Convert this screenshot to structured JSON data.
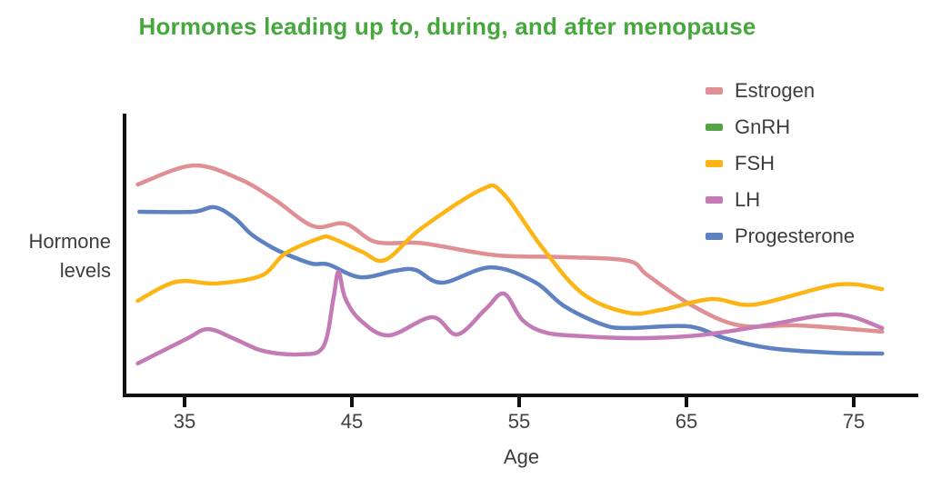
{
  "title": {
    "text": "Hormones leading up to, during, and after menopause",
    "color": "#46a83c"
  },
  "y_axis_label": "Hormone\nlevels",
  "x_axis_label": "Age",
  "legend": [
    {
      "label": "Estrogen",
      "color": "#e08f94"
    },
    {
      "label": "GnRH",
      "color": "#55a546"
    },
    {
      "label": "FSH",
      "color": "#fdb515"
    },
    {
      "label": "LH",
      "color": "#c47ab4"
    },
    {
      "label": "Progesterone",
      "color": "#5d81c1"
    }
  ],
  "colors": {
    "axis": "#111111",
    "text": "#3d3d3d",
    "background": "#ffffff"
  },
  "chart_data": {
    "type": "line",
    "title": "Hormones leading up to, during, and after menopause",
    "xlabel": "Age",
    "ylabel": "Hormone levels",
    "x_ticks": [
      35,
      45,
      55,
      65,
      75
    ],
    "xlim": [
      31.5,
      79
    ],
    "ylim": [
      0,
      100
    ],
    "y_units": "relative hormone level (y axis unlabeled; 0-100 arbitrary units)",
    "grid": false,
    "legend_position": "top-right",
    "series": [
      {
        "name": "Estrogen",
        "color": "#e08f94",
        "points": [
          [
            32.2,
            75.0
          ],
          [
            35.5,
            81.7
          ],
          [
            38.3,
            76.9
          ],
          [
            40.4,
            69.6
          ],
          [
            42.7,
            60.3
          ],
          [
            44.6,
            61.2
          ],
          [
            46.4,
            54.8
          ],
          [
            48.8,
            54.5
          ],
          [
            50.1,
            53.5
          ],
          [
            53.7,
            50.0
          ],
          [
            57.7,
            49.4
          ],
          [
            61.5,
            48.1
          ],
          [
            62.7,
            42.9
          ],
          [
            65.4,
            32.1
          ],
          [
            68.2,
            25.3
          ],
          [
            71.8,
            25.3
          ],
          [
            76.7,
            23.1
          ]
        ]
      },
      {
        "name": "GnRH",
        "color": "#55a546",
        "points": [],
        "note": "listed in legend but no curve visible in the plot area"
      },
      {
        "name": "FSH",
        "color": "#fdb515",
        "points": [
          [
            32.2,
            34.0
          ],
          [
            34.5,
            40.7
          ],
          [
            36.9,
            40.1
          ],
          [
            39.6,
            42.9
          ],
          [
            41.0,
            50.6
          ],
          [
            43.1,
            56.1
          ],
          [
            43.8,
            56.1
          ],
          [
            45.6,
            51.3
          ],
          [
            47.0,
            48.4
          ],
          [
            49.1,
            59.3
          ],
          [
            52.7,
            73.1
          ],
          [
            54.0,
            72.1
          ],
          [
            56.4,
            52.6
          ],
          [
            58.8,
            36.5
          ],
          [
            61.5,
            29.8
          ],
          [
            63.5,
            30.8
          ],
          [
            66.5,
            34.6
          ],
          [
            69.1,
            32.7
          ],
          [
            74.0,
            39.7
          ],
          [
            76.7,
            38.1
          ]
        ]
      },
      {
        "name": "LH",
        "color": "#c47ab4",
        "points": [
          [
            32.2,
            11.9
          ],
          [
            35.1,
            20.5
          ],
          [
            36.4,
            24.0
          ],
          [
            38.0,
            20.5
          ],
          [
            39.7,
            16.3
          ],
          [
            41.9,
            15.1
          ],
          [
            43.3,
            17.9
          ],
          [
            43.9,
            35.0
          ],
          [
            44.2,
            44.2
          ],
          [
            44.6,
            35.0
          ],
          [
            45.5,
            27.2
          ],
          [
            47.2,
            21.8
          ],
          [
            49.8,
            28.2
          ],
          [
            51.3,
            22.1
          ],
          [
            53.0,
            31.1
          ],
          [
            54.1,
            36.5
          ],
          [
            55.2,
            27.2
          ],
          [
            56.6,
            22.8
          ],
          [
            58.8,
            21.5
          ],
          [
            62.0,
            20.8
          ],
          [
            65.1,
            21.5
          ],
          [
            67.4,
            23.1
          ],
          [
            70.0,
            25.6
          ],
          [
            74.0,
            29.2
          ],
          [
            76.7,
            24.4
          ]
        ]
      },
      {
        "name": "Progesterone",
        "color": "#5d81c1",
        "points": [
          [
            32.3,
            65.4
          ],
          [
            35.5,
            65.4
          ],
          [
            36.8,
            67.0
          ],
          [
            38.0,
            63.1
          ],
          [
            39.0,
            57.4
          ],
          [
            40.2,
            52.9
          ],
          [
            41.0,
            50.6
          ],
          [
            42.6,
            47.1
          ],
          [
            43.6,
            46.8
          ],
          [
            45.5,
            42.3
          ],
          [
            47.6,
            44.6
          ],
          [
            48.8,
            44.9
          ],
          [
            50.4,
            40.4
          ],
          [
            53.3,
            45.8
          ],
          [
            55.9,
            40.7
          ],
          [
            57.7,
            32.1
          ],
          [
            60.0,
            25.6
          ],
          [
            61.5,
            24.4
          ],
          [
            65.1,
            25.0
          ],
          [
            67.3,
            20.8
          ],
          [
            70.0,
            17.3
          ],
          [
            73.6,
            15.7
          ],
          [
            76.7,
            15.4
          ]
        ]
      }
    ]
  }
}
